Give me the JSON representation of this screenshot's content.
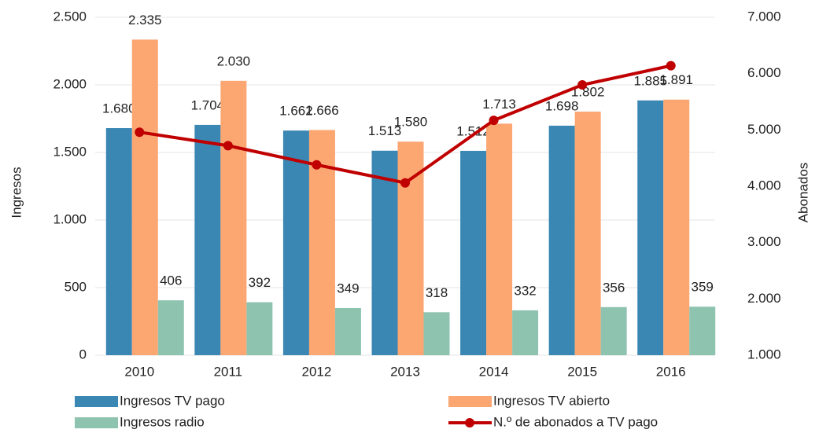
{
  "chart_data": {
    "type": "bar",
    "categories": [
      "2010",
      "2011",
      "2012",
      "2013",
      "2014",
      "2015",
      "2016"
    ],
    "ylabel": "Ingresos",
    "y2label": "Abonados",
    "ylim": [
      0,
      2500
    ],
    "yticks": [
      0,
      {
        "value": 500,
        "label": "500"
      },
      {
        "value": 1000,
        "label": "1.000"
      },
      {
        "value": 1500,
        "label": "1.500"
      },
      {
        "value": 2000,
        "label": "2.000"
      },
      {
        "value": 2500,
        "label": "2.500"
      }
    ],
    "y2lim": [
      1000,
      7000
    ],
    "y2ticks": [
      {
        "value": 1000,
        "label": "1.000"
      },
      {
        "value": 2000,
        "label": "2.000"
      },
      {
        "value": 3000,
        "label": "3.000"
      },
      {
        "value": 4000,
        "label": "4.000"
      },
      {
        "value": 5000,
        "label": "5.000"
      },
      {
        "value": 6000,
        "label": "6.000"
      },
      {
        "value": 7000,
        "label": "7.000"
      }
    ],
    "grid": true,
    "series": [
      {
        "name": "Ingresos TV pago",
        "color": "#3a87b3",
        "values": [
          1680,
          1704,
          1662,
          1513,
          1512,
          1698,
          1885
        ],
        "value_labels": [
          "1.680",
          "1.704",
          "1.662",
          "1.513",
          "1.512",
          "1.698",
          "1.885"
        ]
      },
      {
        "name": "Ingresos TV abierto",
        "color": "#fca672",
        "values": [
          2335,
          2030,
          1666,
          1580,
          1713,
          1802,
          1891
        ],
        "value_labels": [
          "2.335",
          "2.030",
          "1.666",
          "1.580",
          "1.713",
          "1.802",
          "1.891"
        ]
      },
      {
        "name": "Ingresos radio",
        "color": "#8ec3b0",
        "values": [
          406,
          392,
          349,
          318,
          332,
          356,
          359
        ]
      },
      {
        "name": "N.º de abonados a TV pago",
        "color": "#c00000",
        "type": "line",
        "axis": "y2",
        "values": [
          4960,
          4720,
          4380,
          4060,
          5170,
          5800,
          6140
        ]
      }
    ]
  }
}
